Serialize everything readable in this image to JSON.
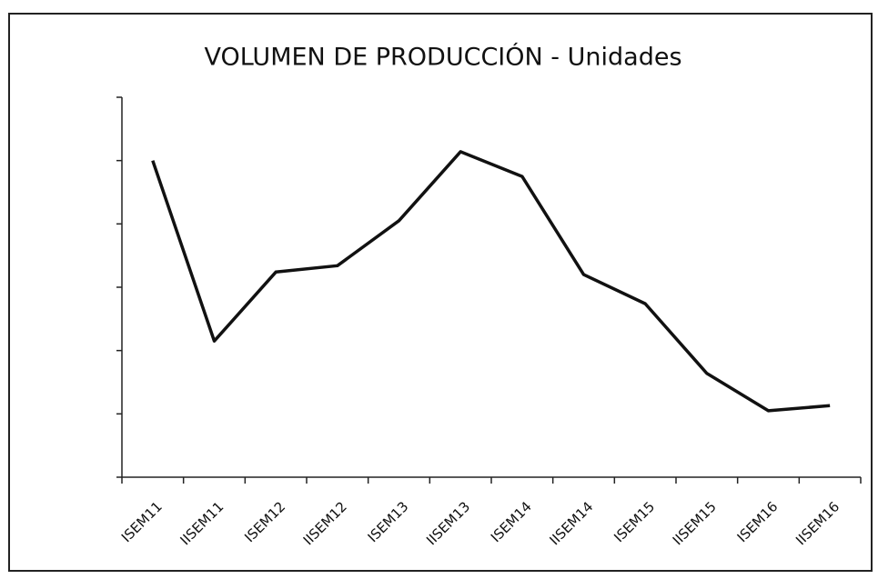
{
  "chart_data": {
    "type": "line",
    "title": "VOLUMEN DE PRODUCCIÓN - Unidades",
    "categories": [
      "ISEM11",
      "IISEM11",
      "ISEM12",
      "IISEM12",
      "ISEM13",
      "IISEM13",
      "ISEM14",
      "IISEM14",
      "ISEM15",
      "IISEM15",
      "ISEM16",
      "IISEM16"
    ],
    "values": [
      5.0,
      2.15,
      3.24,
      3.34,
      4.05,
      5.14,
      4.75,
      3.2,
      2.74,
      1.64,
      1.05,
      1.13
    ],
    "color": "#111111",
    "ylim": [
      0,
      6
    ],
    "yticks": [
      0,
      1,
      2,
      3,
      4,
      5,
      6
    ],
    "grid": false
  }
}
